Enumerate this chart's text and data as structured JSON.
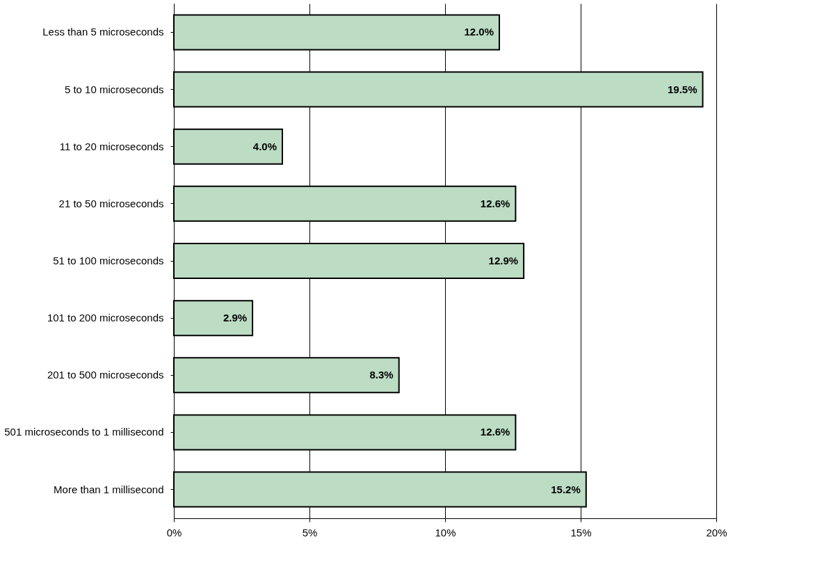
{
  "chart_data": {
    "type": "bar",
    "orientation": "horizontal",
    "categories": [
      "Less than 5 microseconds",
      "5 to 10 microseconds",
      "11 to 20 microseconds",
      "21 to 50 microseconds",
      "51 to 100 microseconds",
      "101 to 200 microseconds",
      "201 to 500 microseconds",
      "501 microseconds to 1 millisecond",
      "More than 1 millisecond"
    ],
    "values": [
      12.0,
      19.5,
      4.0,
      12.6,
      12.9,
      2.9,
      8.3,
      12.6,
      15.2
    ],
    "value_labels": [
      "12.0%",
      "19.5%",
      "4.0%",
      "12.6%",
      "12.9%",
      "2.9%",
      "8.3%",
      "12.6%",
      "15.2%"
    ],
    "color": "#bcdcc4",
    "xlim": [
      0,
      20
    ],
    "xticks": [
      {
        "value": 0,
        "label": "0%"
      },
      {
        "value": 5,
        "label": "5%"
      },
      {
        "value": 10,
        "label": "10%"
      },
      {
        "value": 15,
        "label": "15%"
      },
      {
        "value": 20,
        "label": "20%"
      }
    ],
    "grid": "x"
  }
}
